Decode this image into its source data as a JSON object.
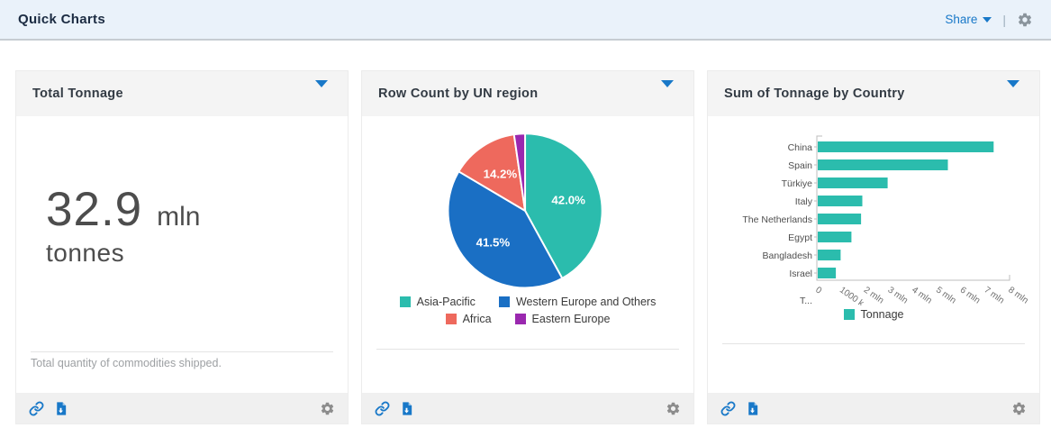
{
  "topbar": {
    "title": "Quick Charts",
    "share_label": "Share",
    "separator": "|"
  },
  "cards": {
    "tonnage": {
      "title": "Total Tonnage",
      "value": "32.9",
      "unit": "mln",
      "unit_line2": "tonnes",
      "caption": "Total quantity of commodities shipped."
    },
    "pie": {
      "title": "Row Count by UN region"
    },
    "bar": {
      "title": "Sum of Tonnage by Country"
    }
  },
  "colors": {
    "accent_blue": "#1878c8",
    "teal": "#2bbcad",
    "blue": "#1a6fc4",
    "red": "#ee695d",
    "purple": "#9a28af",
    "axis_gray": "#bdbdbd",
    "label_gray": "#4f4f4f"
  },
  "chart_data": [
    {
      "type": "big-number",
      "title": "Total Tonnage",
      "value": 32.9,
      "unit": "mln tonnes",
      "caption": "Total quantity of commodities shipped."
    },
    {
      "type": "pie",
      "title": "Row Count by UN region",
      "labels": [
        "Asia-Pacific",
        "Western Europe and Others",
        "Africa",
        "Eastern Europe"
      ],
      "values_pct": [
        42.0,
        41.5,
        14.2,
        2.3
      ],
      "slice_labels": [
        "42.0%",
        "41.5%",
        "14.2%",
        ""
      ],
      "colors": [
        "#2bbcad",
        "#1a6fc4",
        "#ee695d",
        "#9a28af"
      ],
      "start": "top",
      "direction": "clockwise",
      "legend_position": "bottom"
    },
    {
      "type": "bar",
      "orientation": "horizontal",
      "title": "Sum of Tonnage by Country",
      "categories": [
        "China",
        "Spain",
        "Türkiye",
        "Italy",
        "The Netherlands",
        "Egypt",
        "Bangladesh",
        "Israel"
      ],
      "values_mln": [
        7.3,
        5.4,
        2.9,
        1.85,
        1.8,
        1.4,
        0.95,
        0.75
      ],
      "clipped_next_category": "T...",
      "x_ticks": [
        "0",
        "1000 k",
        "2 mln",
        "3 mln",
        "4 mln",
        "5 mln",
        "6 mln",
        "7 mln",
        "8 mln"
      ],
      "xlim_mln": [
        0,
        8
      ],
      "series_name": "Tonnage",
      "color": "#2bbcad",
      "legend_position": "bottom",
      "grid": false
    }
  ]
}
